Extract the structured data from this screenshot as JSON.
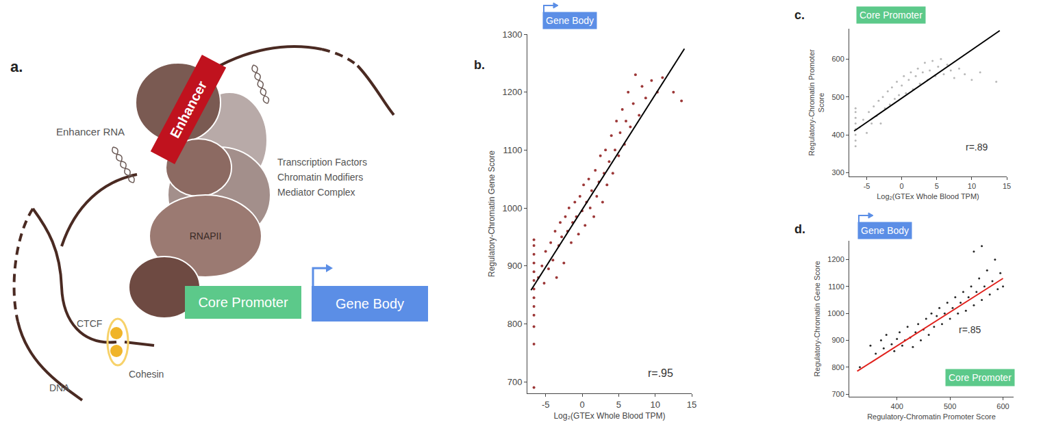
{
  "diagram": {
    "panel": "a.",
    "enhancer": "Enhancer",
    "enhancer_rna": "Enhancer RNA",
    "factors": [
      "Transcription Factors",
      "Chromatin Modifiers",
      "Mediator Complex"
    ],
    "polymerase": "RNAPII",
    "ctcf": "CTCF",
    "cohesin": "Cohesin",
    "dna": "DNA",
    "core_promoter": "Core Promoter",
    "gene_body": "Gene Body"
  },
  "chart_data": [
    {
      "panel": "b.",
      "type": "scatter",
      "grid": false,
      "x_label": "Log₂(GTEx Whole Blood TPM)",
      "y_label": "Regulatory-Chromatin Gene Score",
      "xlim": [
        -7.5,
        15
      ],
      "xticks": [
        -5,
        0,
        5,
        10,
        15
      ],
      "ylim": [
        680,
        1300
      ],
      "yticks": [
        700,
        800,
        900,
        1000,
        1100,
        1200,
        1300
      ],
      "annotations": [
        "r=.95"
      ],
      "labels": [
        {
          "text": "Gene Body",
          "color": "#5b8ee6"
        }
      ],
      "series": [
        {
          "type": "scatter",
          "marker": "circle",
          "color": "#8b1414",
          "x": [
            -6.6,
            -6.6,
            -6.6,
            -6.6,
            -6.6,
            -6.6,
            -6.6,
            -6.6,
            -6.6,
            -6.6,
            -6.6,
            -6.6,
            -6.6,
            -6,
            -5.5,
            -5.2,
            -5,
            -4.6,
            -4.3,
            -4,
            -3.7,
            -3.5,
            -3.2,
            -3,
            -2.8,
            -2.5,
            -2.3,
            -2,
            -1.8,
            -1.5,
            -1.3,
            -1,
            -0.8,
            -0.5,
            -0.3,
            0,
            0.2,
            0.4,
            0.6,
            0.9,
            1.1,
            1.3,
            1.6,
            1.8,
            2,
            2.3,
            2.5,
            2.8,
            3,
            3.2,
            3.4,
            3.7,
            4,
            4.2,
            4.5,
            4.7,
            5,
            5.2,
            5.5,
            5.8,
            6,
            6.3,
            6.6,
            7,
            7.3,
            7.8,
            8.2,
            8.7,
            9.5,
            10.3,
            11,
            12.5,
            13.6
          ],
          "values": [
            690,
            765,
            795,
            815,
            830,
            845,
            860,
            875,
            890,
            905,
            920,
            935,
            945,
            880,
            900,
            870,
            925,
            895,
            940,
            910,
            960,
            880,
            935,
            975,
            950,
            905,
            985,
            960,
            1000,
            940,
            975,
            1010,
            985,
            955,
            1020,
            995,
            1040,
            970,
            1010,
            1050,
            1000,
            1030,
            985,
            1065,
            1020,
            1045,
            1090,
            1010,
            1060,
            1100,
            1040,
            1080,
            1125,
            1060,
            1100,
            1150,
            1090,
            1130,
            1170,
            1110,
            1150,
            1200,
            1140,
            1180,
            1230,
            1160,
            1210,
            1190,
            1220,
            1200,
            1225,
            1200,
            1185
          ]
        },
        {
          "type": "line",
          "line_style": "solid",
          "color": "#000000",
          "x": [
            -7,
            14
          ],
          "values": [
            858,
            1275
          ]
        }
      ]
    },
    {
      "panel": "c.",
      "type": "scatter",
      "grid": false,
      "x_label": "Log₂(GTEx Whole Blood TPM)",
      "y_label": "Regulatory-Chromatin Promoter Score",
      "xlim": [
        -7.5,
        15
      ],
      "xticks": [
        -5,
        0,
        5,
        10,
        15
      ],
      "ylim": [
        290,
        680
      ],
      "yticks": [
        300,
        400,
        500,
        600
      ],
      "annotations": [
        "r=.89"
      ],
      "labels": [
        {
          "text": "Core Promoter",
          "color": "#5cc98a"
        }
      ],
      "series": [
        {
          "type": "scatter",
          "marker": "circle",
          "color": "#aaaaaa",
          "x": [
            -6.6,
            -6.6,
            -6.6,
            -6.6,
            -6.6,
            -6.6,
            -6.6,
            -6.6,
            -6,
            -5.5,
            -5,
            -4.7,
            -4.3,
            -4,
            -3.6,
            -3.3,
            -3,
            -2.7,
            -2.4,
            -2,
            -1.7,
            -1.4,
            -1,
            -0.7,
            -0.4,
            0,
            0.3,
            0.6,
            1,
            1.3,
            1.6,
            2,
            2.3,
            2.6,
            3,
            3.3,
            3.7,
            4,
            4.4,
            4.8,
            5.2,
            5.6,
            6,
            6.5,
            7,
            7.5,
            8.2,
            9,
            10,
            11.2,
            13.5
          ],
          "values": [
            370,
            385,
            400,
            415,
            430,
            445,
            460,
            470,
            420,
            440,
            405,
            460,
            430,
            475,
            450,
            490,
            430,
            500,
            470,
            515,
            480,
            525,
            495,
            540,
            505,
            530,
            555,
            510,
            545,
            565,
            520,
            555,
            575,
            535,
            565,
            590,
            545,
            570,
            595,
            555,
            580,
            600,
            560,
            585,
            570,
            550,
            575,
            560,
            545,
            565,
            540
          ]
        },
        {
          "type": "line",
          "line_style": "solid",
          "color": "#000000",
          "x": [
            -6.8,
            14
          ],
          "values": [
            410,
            675
          ]
        }
      ]
    },
    {
      "panel": "d.",
      "type": "scatter",
      "grid": false,
      "x_label": "Regulatory-Chromatin Promoter Score",
      "y_label": "Regulatory-Chromatin Gene Score",
      "xlim": [
        310,
        620
      ],
      "xticks": [
        400,
        500,
        600
      ],
      "ylim": [
        690,
        1270
      ],
      "yticks": [
        700,
        800,
        900,
        1000,
        1100,
        1200
      ],
      "annotations": [
        "r=.85"
      ],
      "labels": [
        {
          "text": "Gene Body",
          "color": "#5b8ee6"
        },
        {
          "text": "Core Promoter",
          "color": "#5cc98a"
        }
      ],
      "series": [
        {
          "type": "scatter",
          "marker": "circle",
          "color": "#000000",
          "x": [
            330,
            350,
            360,
            370,
            375,
            380,
            390,
            395,
            400,
            405,
            410,
            415,
            420,
            425,
            430,
            435,
            440,
            445,
            450,
            455,
            460,
            465,
            470,
            475,
            480,
            485,
            490,
            495,
            500,
            505,
            510,
            515,
            520,
            525,
            530,
            535,
            540,
            545,
            550,
            555,
            560,
            565,
            570,
            575,
            580,
            585,
            590,
            595,
            600,
            545,
            560
          ],
          "values": [
            800,
            880,
            850,
            900,
            870,
            920,
            885,
            860,
            905,
            930,
            880,
            900,
            950,
            910,
            875,
            930,
            960,
            900,
            940,
            980,
            920,
            1000,
            950,
            990,
            1020,
            960,
            1000,
            1040,
            980,
            1020,
            1060,
            1000,
            1040,
            1080,
            1010,
            1060,
            1100,
            1030,
            1080,
            1130,
            1050,
            1100,
            1160,
            1070,
            1120,
            1200,
            1090,
            1150,
            1100,
            1230,
            1250
          ]
        },
        {
          "type": "line",
          "line_style": "solid",
          "color": "#e0201b",
          "x": [
            325,
            600
          ],
          "values": [
            785,
            1130
          ]
        }
      ]
    }
  ]
}
